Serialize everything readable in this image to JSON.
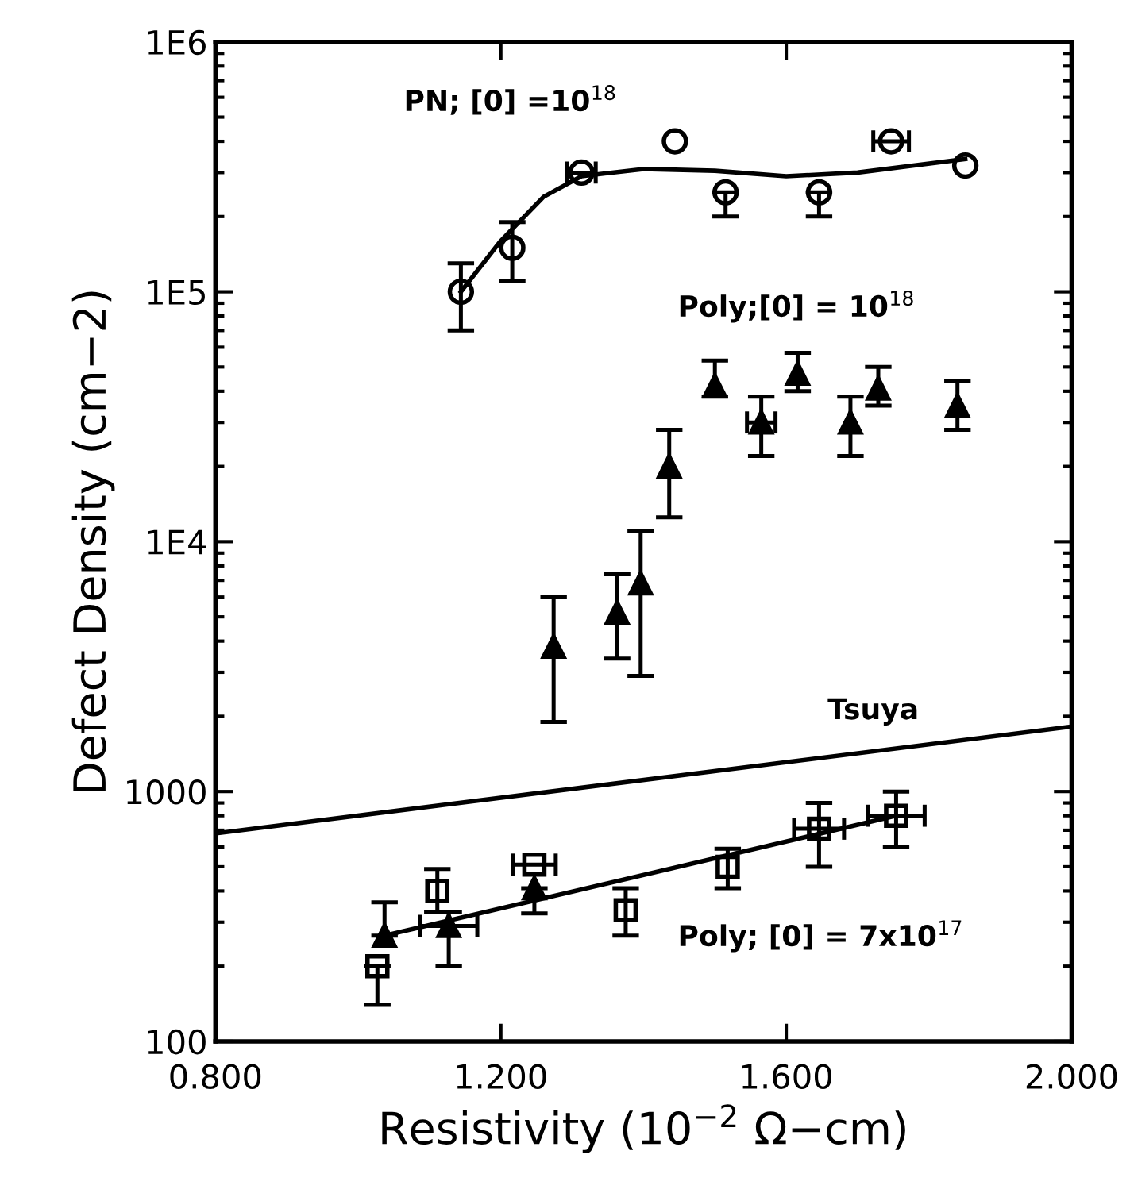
{
  "chart_data": {
    "type": "scatter",
    "xlabel": "Resistivity (10$^{−2}$ Ω−cm)",
    "ylabel": "Defect Density (cm−2)",
    "log": "y",
    "xlim": [
      0.8,
      2.0
    ],
    "ylim": [
      100,
      1000000
    ],
    "xticks": [
      {
        "value": 0.8,
        "label": "0.800"
      },
      {
        "value": 1.2,
        "label": "1.200"
      },
      {
        "value": 1.6,
        "label": "1.600"
      },
      {
        "value": 2.0,
        "label": "2.000"
      }
    ],
    "yticks": [
      {
        "value": 100,
        "label": "100"
      },
      {
        "value": 1000,
        "label": "1000"
      },
      {
        "value": 10000,
        "label": "1E4"
      },
      {
        "value": 100000,
        "label": "1E5"
      },
      {
        "value": 1000000,
        "label": "1E6"
      }
    ],
    "grid": false,
    "legend": false,
    "series": [
      {
        "marker": "circle",
        "color": "#000000",
        "x": [
          1.144,
          1.216,
          1.313,
          1.444,
          1.515,
          1.646,
          1.747,
          1.851
        ],
        "values": [
          100000,
          150000,
          300000,
          400000,
          250000,
          250000,
          400000,
          320000
        ],
        "errors": [
          [
            70000,
            130000
          ],
          [
            110000,
            190000
          ],
          null,
          null,
          [
            200000,
            250000
          ],
          [
            200000,
            250000
          ],
          null,
          null
        ],
        "xerrors": [
          null,
          null,
          0.02,
          null,
          null,
          null,
          0.025,
          null
        ]
      },
      {
        "type": "line",
        "marker": "none",
        "color": "#000000",
        "x": [
          1.144,
          1.2,
          1.26,
          1.313,
          1.4,
          1.5,
          1.6,
          1.7,
          1.851
        ],
        "values": [
          100000,
          160000,
          240000,
          290000,
          310000,
          305000,
          290000,
          300000,
          340000
        ]
      },
      {
        "marker": "triangle",
        "color": "#000000",
        "x": [
          1.274,
          1.363,
          1.396,
          1.436,
          1.5,
          1.565,
          1.616,
          1.69,
          1.729,
          1.84
        ],
        "values": [
          3800,
          5200,
          6800,
          20000,
          42000,
          30000,
          47000,
          30000,
          41000,
          35000
        ],
        "errors": [
          [
            1900,
            6000
          ],
          [
            3400,
            7400
          ],
          [
            2900,
            11000
          ],
          [
            12500,
            28000
          ],
          [
            38000,
            53000
          ],
          [
            22000,
            38000
          ],
          [
            40000,
            57000
          ],
          [
            22000,
            38000
          ],
          [
            35000,
            50000
          ],
          [
            28000,
            44000
          ]
        ],
        "xerrors": [
          null,
          null,
          null,
          null,
          null,
          0.02,
          null,
          null,
          null,
          null
        ]
      },
      {
        "marker": "triangle",
        "color": "#000000",
        "x": [
          1.037,
          1.127,
          1.247
        ],
        "values": [
          265,
          290,
          410
        ],
        "errors": [
          [
            265,
            360
          ],
          [
            200,
            330
          ],
          [
            325,
            410
          ]
        ],
        "xerrors": [
          null,
          0.04,
          null
        ]
      },
      {
        "marker": "square",
        "color": "#000000",
        "x": [
          1.027,
          1.111,
          1.247,
          1.375,
          1.518,
          1.646,
          1.754
        ],
        "values": [
          200,
          400,
          510,
          335,
          500,
          710,
          800
        ],
        "errors": [
          [
            140,
            200
          ],
          [
            330,
            490
          ],
          null,
          [
            265,
            410
          ],
          [
            410,
            590
          ],
          [
            500,
            900
          ],
          [
            600,
            1000
          ]
        ],
        "xerrors": [
          null,
          null,
          0.03,
          null,
          null,
          0.035,
          0.04
        ]
      },
      {
        "type": "line",
        "marker": "none",
        "color": "#000000",
        "x": [
          1.037,
          1.754
        ],
        "values": [
          265,
          800
        ]
      },
      {
        "type": "line",
        "marker": "none",
        "color": "#000000",
        "x": [
          0.8,
          2.0
        ],
        "values": [
          680,
          1820
        ]
      }
    ],
    "annotations": [
      "PN; [0] =10$^{18}$",
      "Poly;[0] = 10$^{18}$",
      "Poly; [0] = 7x10$^{17}$",
      "Tsuya"
    ]
  }
}
